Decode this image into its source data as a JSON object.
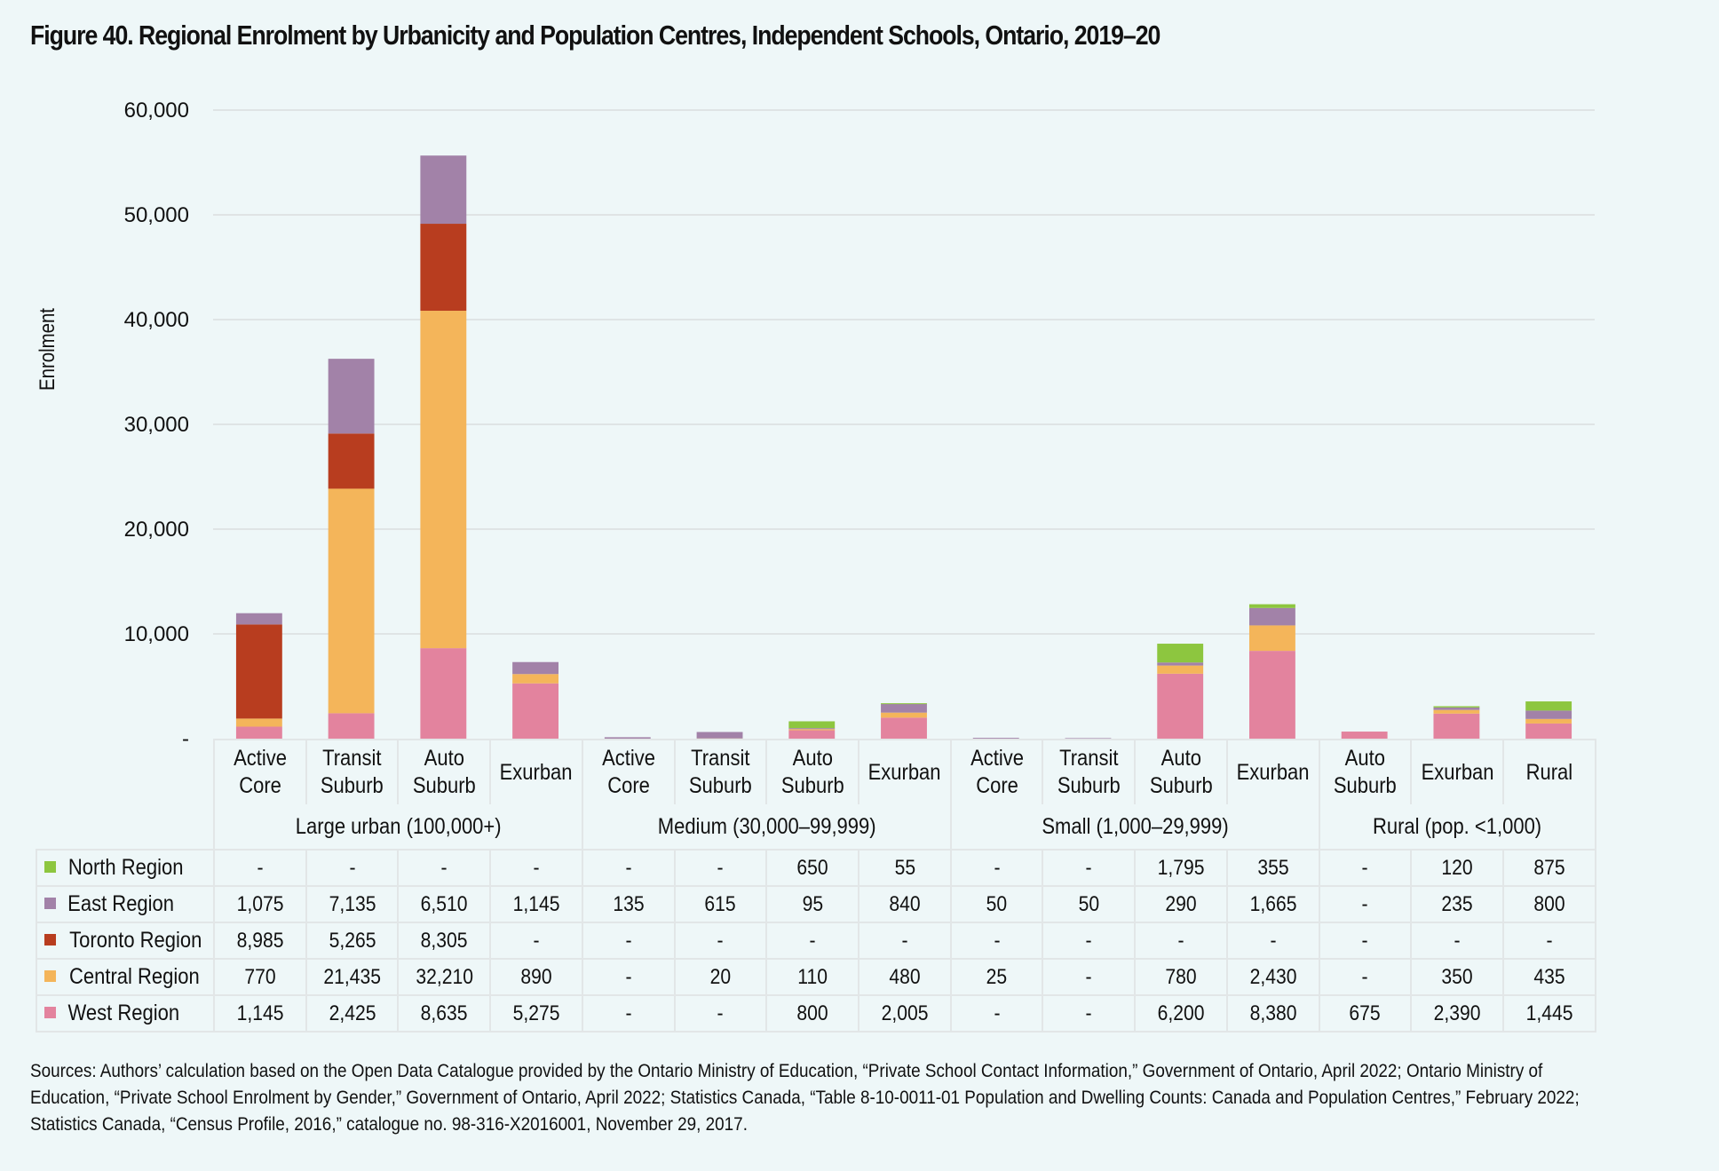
{
  "title": "Figure 40. Regional Enrolment by Urbanicity and Population Centres, Independent Schools, Ontario, 2019–20",
  "sources": "Sources: Authors’ calculation based on the Open Data Catalogue provided by the Ontario Ministry of Education, “Private School Contact Information,” Government of Ontario, April 2022; Ontario Ministry of Education, “Private School Enrolment by Gender,” Government of Ontario, April 2022; Statistics Canada, “Table 8-10-0011-01 Population and Dwelling Counts: Canada and Population Centres,” February 2022; Statistics Canada, “Census Profile, 2016,” catalogue no. 98-316-X2016001, November 29, 2017.",
  "chart_data": {
    "type": "bar",
    "stacked": true,
    "title": "Figure 40. Regional Enrolment by Urbanicity and Population Centres, Independent Schools, Ontario, 2019–20",
    "xlabel": "",
    "ylabel": "Enrolment",
    "ylim": [
      0,
      60000
    ],
    "yticks": [
      0,
      10000,
      20000,
      30000,
      40000,
      50000,
      60000
    ],
    "ytick_labels": [
      "-",
      "10,000",
      "20,000",
      "30,000",
      "40,000",
      "50,000",
      "60,000"
    ],
    "grid": true,
    "legend_position": "data-table-left",
    "categories": [
      {
        "label": [
          "Active",
          "Core"
        ],
        "group": 0
      },
      {
        "label": [
          "Transit",
          "Suburb"
        ],
        "group": 0
      },
      {
        "label": [
          "Auto",
          "Suburb"
        ],
        "group": 0
      },
      {
        "label": [
          "Exurban"
        ],
        "group": 0
      },
      {
        "label": [
          "Active",
          "Core"
        ],
        "group": 1
      },
      {
        "label": [
          "Transit",
          "Suburb"
        ],
        "group": 1
      },
      {
        "label": [
          "Auto",
          "Suburb"
        ],
        "group": 1
      },
      {
        "label": [
          "Exurban"
        ],
        "group": 1
      },
      {
        "label": [
          "Active",
          "Core"
        ],
        "group": 2
      },
      {
        "label": [
          "Transit",
          "Suburb"
        ],
        "group": 2
      },
      {
        "label": [
          "Auto",
          "Suburb"
        ],
        "group": 2
      },
      {
        "label": [
          "Exurban"
        ],
        "group": 2
      },
      {
        "label": [
          "Auto",
          "Suburb"
        ],
        "group": 3
      },
      {
        "label": [
          "Exurban"
        ],
        "group": 3
      },
      {
        "label": [
          "Rural"
        ],
        "group": 3
      }
    ],
    "groups": [
      {
        "label": "Large urban (100,000+)",
        "span": 4
      },
      {
        "label": "Medium (30,000–99,999)",
        "span": 4
      },
      {
        "label": "Small (1,000–29,999)",
        "span": 4
      },
      {
        "label": "Rural (pop. <1,000)",
        "span": 3
      }
    ],
    "series": [
      {
        "name": "North Region",
        "color": "#8dc63f",
        "values": [
          0,
          0,
          0,
          0,
          0,
          0,
          650,
          55,
          0,
          0,
          1795,
          355,
          0,
          120,
          875
        ],
        "labels": [
          "-",
          "-",
          "-",
          "-",
          "-",
          "-",
          "650",
          "55",
          "-",
          "-",
          "1,795",
          "355",
          "-",
          "120",
          "875"
        ]
      },
      {
        "name": "East Region",
        "color": "#a282a8",
        "values": [
          1075,
          7135,
          6510,
          1145,
          135,
          615,
          95,
          840,
          50,
          50,
          290,
          1665,
          0,
          235,
          800
        ],
        "labels": [
          "1,075",
          "7,135",
          "6,510",
          "1,145",
          "135",
          "615",
          "95",
          "840",
          "50",
          "50",
          "290",
          "1,665",
          "-",
          "235",
          "800"
        ]
      },
      {
        "name": "Toronto Region",
        "color": "#b83d1f",
        "values": [
          8985,
          5265,
          8305,
          0,
          0,
          0,
          0,
          0,
          0,
          0,
          0,
          0,
          0,
          0,
          0
        ],
        "labels": [
          "8,985",
          "5,265",
          "8,305",
          "-",
          "-",
          "-",
          "-",
          "-",
          "-",
          "-",
          "-",
          "-",
          "-",
          "-",
          "-"
        ]
      },
      {
        "name": "Central Region",
        "color": "#f4b55a",
        "values": [
          770,
          21435,
          32210,
          890,
          0,
          20,
          110,
          480,
          25,
          0,
          780,
          2430,
          0,
          350,
          435
        ],
        "labels": [
          "770",
          "21,435",
          "32,210",
          "890",
          "-",
          "20",
          "110",
          "480",
          "25",
          "-",
          "780",
          "2,430",
          "-",
          "350",
          "435"
        ]
      },
      {
        "name": "West Region",
        "color": "#e3839e",
        "values": [
          1145,
          2425,
          8635,
          5275,
          0,
          0,
          800,
          2005,
          0,
          0,
          6200,
          8380,
          675,
          2390,
          1445
        ],
        "labels": [
          "1,145",
          "2,425",
          "8,635",
          "5,275",
          "-",
          "-",
          "800",
          "2,005",
          "-",
          "-",
          "6,200",
          "8,380",
          "675",
          "2,390",
          "1,445"
        ]
      }
    ],
    "stack_order_bottom_to_top": [
      "West Region",
      "Central Region",
      "Toronto Region",
      "East Region",
      "North Region"
    ]
  }
}
